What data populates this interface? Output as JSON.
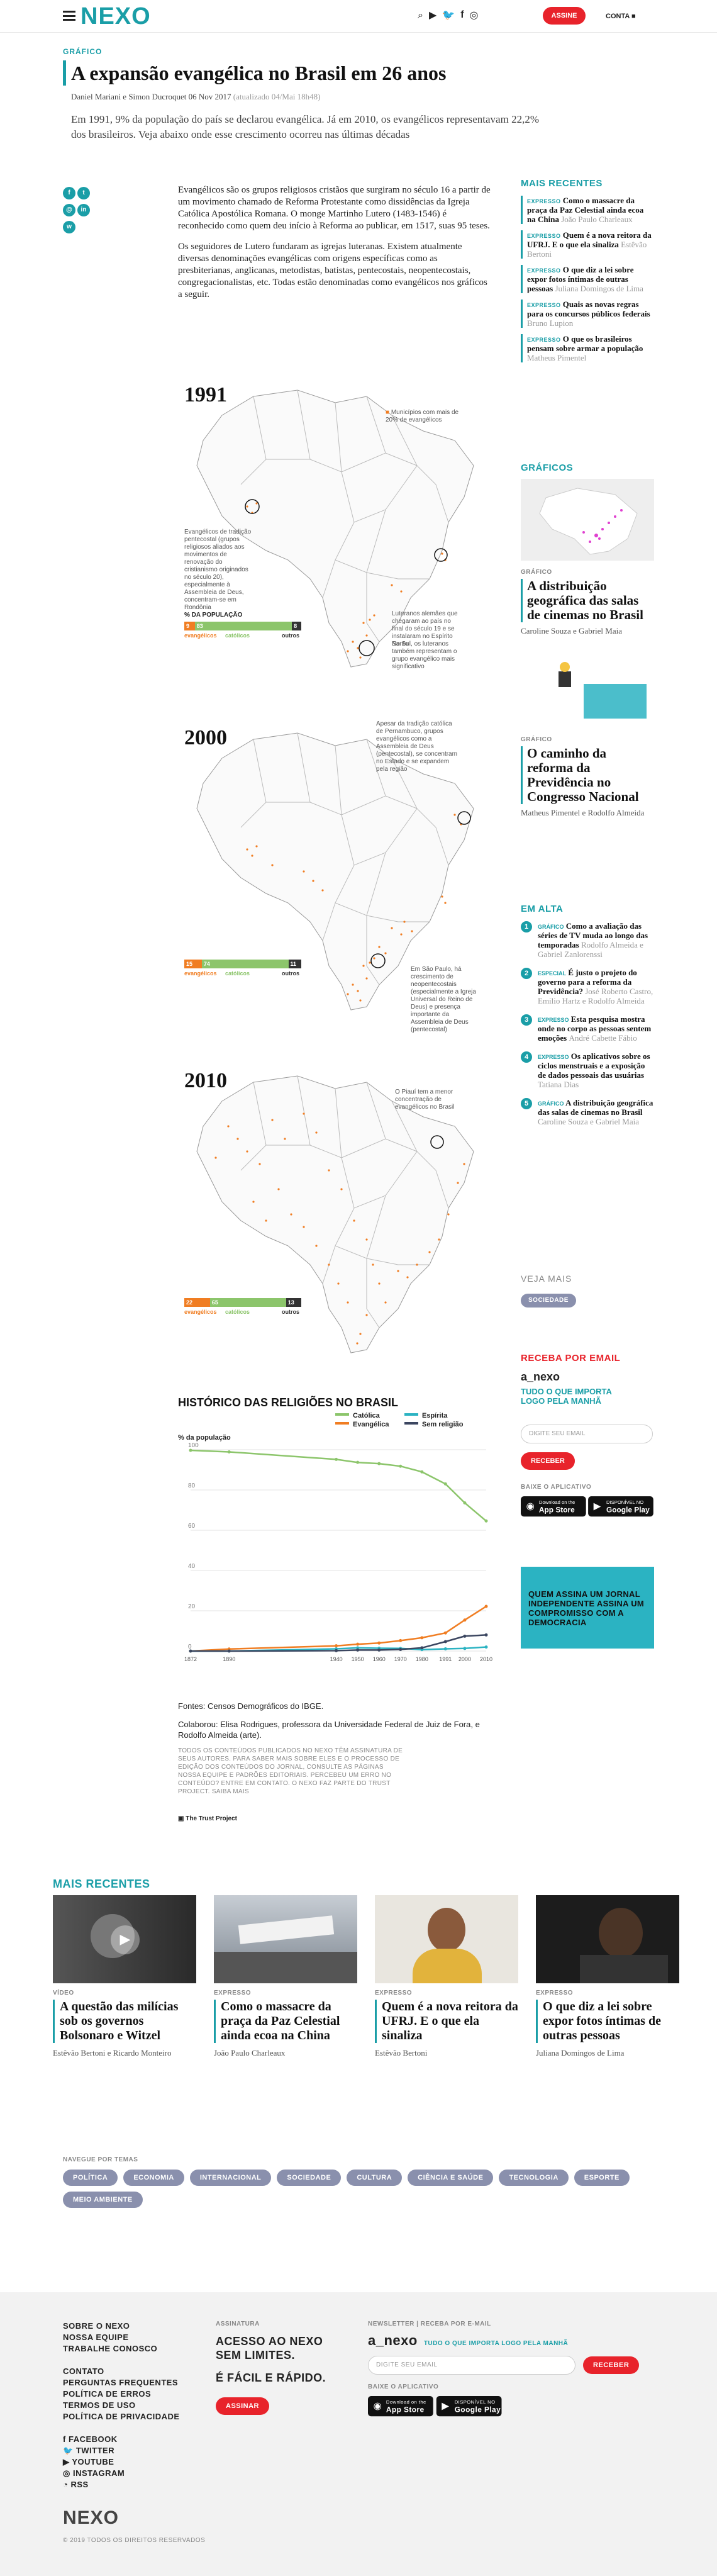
{
  "header": {
    "logo": "NEXO",
    "assine_label": "ASSINE",
    "conta_label": "CONTA",
    "icons": [
      "search-icon",
      "youtube-icon",
      "twitter-icon",
      "facebook-icon",
      "instagram-icon"
    ]
  },
  "article": {
    "kicker": "GRÁFICO",
    "title": "A expansão evangélica no Brasil em 26 anos",
    "byline": "Daniel Mariani e Simon Ducroquet",
    "date": "06 Nov 2017",
    "updated": "(atualizado 04/Mai 18h48)",
    "lede": "Em 1991, 9% da população do país se declarou evangélica. Já em 2010, os evangélicos representavam 22,2% dos brasileiros. Veja abaixo onde esse crescimento ocorreu nas últimas décadas",
    "paragraphs": [
      "Evangélicos são os grupos religiosos cristãos que surgiram no século 16 a partir de um movimento chamado de Reforma Protestante como dissidências da Igreja Católica Apostólica Romana. O monge Martinho Lutero (1483-1546) é reconhecido como quem deu início à Reforma ao publicar, em 1517, suas 95 teses.",
      "Os seguidores de Lutero fundaram as igrejas luteranas. Existem atualmente diversas denominações evangélicas com origens específicas como as presbiterianas, anglicanas, metodistas, batistas, pentecostais, neopentecostais, congregacionalistas, etc. Todas estão denominadas como evangélicos nos gráficos a seguir."
    ]
  },
  "maps": [
    {
      "year": "1991",
      "legend": "Municípios com mais de 20% de evangélicos",
      "pop_label": "% DA POPULAÇÃO",
      "pop": {
        "evangelicos": 9,
        "catolicos": 83,
        "outros": 8
      },
      "notes": [
        "Evangélicos de tradição pentecostal (grupos religiosos aliados aos movimentos de renovação do cristianismo originados no século 20), especialmente à Assembleia de Deus, concentram-se em Rondônia",
        "Luteranos alemães que chegaram ao país no final do século 19 e se instalaram no Espírito Santo",
        "No Sul, os luteranos também representam o grupo evangélico mais significativo"
      ]
    },
    {
      "year": "2000",
      "pop_label": "% DA POPULAÇÃO",
      "pop": {
        "evangelicos": 15,
        "catolicos": 74,
        "outros": 11
      },
      "notes": [
        "Apesar da tradição católica de Pernambuco, grupos evangélicos como a Assembleia de Deus (pentecostal), se concentram no Estado e se expandem pela região",
        "Em São Paulo, há crescimento de neopentecostais (especialmente a Igreja Universal do Reino de Deus) e presença importante da Assembleia de Deus (pentecostal)"
      ]
    },
    {
      "year": "2010",
      "pop_label": "% DA POPULAÇÃO",
      "pop": {
        "evangelicos": 22,
        "catolicos": 65,
        "outros": 13
      },
      "notes": [
        "O Piauí tem a menor concentração de evangélicos no Brasil"
      ]
    }
  ],
  "pop_legend": {
    "evangelicos": "evangélicos",
    "catolicos": "católicos",
    "outros": "outros"
  },
  "colors": {
    "accent": "#1a9ea7",
    "evangelica": "#f07d22",
    "catolica": "#8cc56b",
    "espirita": "#2bb3c2",
    "sem_religiao": "#3b4660",
    "red": "#e8232b"
  },
  "chart_data": {
    "type": "line",
    "title": "HISTÓRICO DAS RELIGIÕES NO BRASIL",
    "ylabel": "% da população",
    "ylim": [
      0,
      100
    ],
    "yticks": [
      0,
      20,
      40,
      60,
      80,
      100
    ],
    "x": [
      1872,
      1890,
      1940,
      1950,
      1960,
      1970,
      1980,
      1991,
      2000,
      2010
    ],
    "series": [
      {
        "name": "Católica",
        "values": [
          99.7,
          98.9,
          95.2,
          93.7,
          93.1,
          91.8,
          89.0,
          83.0,
          73.6,
          64.6
        ]
      },
      {
        "name": "Evangélica",
        "values": [
          0,
          1,
          2.6,
          3.4,
          4.0,
          5.2,
          6.6,
          9.0,
          15.4,
          22.2
        ]
      },
      {
        "name": "Espírita",
        "values": [
          0,
          0,
          1.1,
          1.6,
          1.4,
          1.3,
          0.7,
          1.1,
          1.3,
          2.0
        ]
      },
      {
        "name": "Sem religião",
        "values": [
          0,
          0,
          0.2,
          0.5,
          0.5,
          0.8,
          1.6,
          4.7,
          7.4,
          8.0
        ]
      }
    ]
  },
  "sources": {
    "fontes": "Fontes: Censos Demográficos do IBGE.",
    "colaborou": "Colaborou: Elisa Rodrigues, professora da Universidade Federal de Juiz de Fora, e Rodolfo Almeida (arte).",
    "disclaimer": "TODOS OS CONTEÚDOS PUBLICADOS NO NEXO TÊM ASSINATURA DE SEUS AUTORES. PARA SABER MAIS SOBRE ELES E O PROCESSO DE EDIÇÃO DOS CONTEÚDOS DO JORNAL, CONSULTE AS PÁGINAS NOSSA EQUIPE E PADRÕES EDITORIAIS. PERCEBEU UM ERRO NO CONTEÚDO? ENTRE EM CONTATO. O NEXO FAZ PARTE DO TRUST PROJECT. SAIBA MAIS",
    "trust": "The Trust Project"
  },
  "sidebar": {
    "recentes_title": "MAIS RECENTES",
    "recentes": [
      {
        "tag": "EXPRESSO",
        "title": "Como o massacre da praça da Paz Celestial ainda ecoa na China",
        "author": "João Paulo Charleaux"
      },
      {
        "tag": "EXPRESSO",
        "title": "Quem é a nova reitora da UFRJ. E o que ela sinaliza",
        "author": "Estêvão Bertoni"
      },
      {
        "tag": "EXPRESSO",
        "title": "O que diz a lei sobre expor fotos íntimas de outras pessoas",
        "author": "Juliana Domingos de Lima"
      },
      {
        "tag": "EXPRESSO",
        "title": "Quais as novas regras para os concursos públicos federais",
        "author": "Bruno Lupion"
      },
      {
        "tag": "EXPRESSO",
        "title": "O que os brasileiros pensam sobre armar a população",
        "author": "Matheus Pimentel"
      }
    ],
    "graficos_title": "GRÁFICOS",
    "graficos": [
      {
        "cat": "GRÁFICO",
        "title": "A distribuição geográfica das salas de cinemas no Brasil",
        "author": "Caroline Souza e Gabriel Maia"
      },
      {
        "cat": "GRÁFICO",
        "title": "O caminho da reforma da Previdência no Congresso Nacional",
        "author": "Matheus Pimentel e Rodolfo Almeida"
      }
    ],
    "emalta_title": "EM ALTA",
    "emalta": [
      {
        "n": "1",
        "tag": "GRÁFICO",
        "title": "Como a avaliação das séries de TV muda ao longo das temporadas",
        "author": "Rodolfo Almeida e Gabriel Zanlorenssi"
      },
      {
        "n": "2",
        "tag": "ESPECIAL",
        "title": "É justo o projeto do governo para a reforma da Previdência?",
        "author": "José Roberto Castro, Emilio Hartz e Rodolfo Almeida"
      },
      {
        "n": "3",
        "tag": "EXPRESSO",
        "title": "Esta pesquisa mostra onde no corpo as pessoas sentem emoções",
        "author": "André Cabette Fábio"
      },
      {
        "n": "4",
        "tag": "EXPRESSO",
        "title": "Os aplicativos sobre os ciclos menstruais e a exposição de dados pessoais das usuárias",
        "author": "Tatiana Dias"
      },
      {
        "n": "5",
        "tag": "GRÁFICO",
        "title": "A distribuição geográfica das salas de cinemas no Brasil",
        "author": "Caroline Souza e Gabriel Maia"
      }
    ],
    "veja_mais": "VEJA MAIS",
    "veja_tag": "SOCIEDADE",
    "email_title": "RECEBA POR EMAIL",
    "anexo": "a_nexo",
    "anexo_desc": "TUDO O QUE IMPORTA LOGO PELA MANHÃ",
    "email_placeholder": "DIGITE SEU EMAIL",
    "receber": "RECEBER",
    "baixe": "BAIXE O APLICATIVO",
    "appstore_small": "Download on the",
    "appstore": "App Store",
    "googleplay_small": "DISPONÍVEL NO",
    "googleplay": "Google Play",
    "promo": "QUEM ASSINA UM JORNAL INDEPENDENTE ASSINA UM COMPROMISSO COM A DEMOCRACIA"
  },
  "bottom": {
    "title": "MAIS RECENTES",
    "cards": [
      {
        "cat": "VÍDEO",
        "title": "A questão das milícias sob os governos Bolsonaro e Witzel",
        "author": "Estêvão Bertoni e Ricardo Monteiro"
      },
      {
        "cat": "EXPRESSO",
        "title": "Como o massacre da praça da Paz Celestial ainda ecoa na China",
        "author": "João Paulo Charleaux"
      },
      {
        "cat": "EXPRESSO",
        "title": "Quem é a nova reitora da UFRJ. E o que ela sinaliza",
        "author": "Estêvão Bertoni"
      },
      {
        "cat": "EXPRESSO",
        "title": "O que diz a lei sobre expor fotos íntimas de outras pessoas",
        "author": "Juliana Domingos de Lima"
      }
    ],
    "temas_label": "NAVEGUE POR TEMAS",
    "temas": [
      "POLÍTICA",
      "ECONOMIA",
      "INTERNACIONAL",
      "SOCIEDADE",
      "CULTURA",
      "CIÊNCIA E SAÚDE",
      "TECNOLOGIA",
      "ESPORTE",
      "MEIO AMBIENTE"
    ]
  },
  "footer": {
    "col1": [
      "SOBRE O NEXO",
      "NOSSA EQUIPE",
      "TRABALHE CONOSCO"
    ],
    "col2": [
      "CONTATO",
      "PERGUNTAS FREQUENTES",
      "POLÍTICA DE ERROS",
      "TERMOS DE USO",
      "POLÍTICA DE PRIVACIDADE"
    ],
    "social": [
      "FACEBOOK",
      "TWITTER",
      "YOUTUBE",
      "INSTAGRAM",
      "RSS"
    ],
    "assinatura_label": "ASSINATURA",
    "assinatura_text1": "ACESSO AO NEXO SEM LIMITES.",
    "assinatura_text2": "É FÁCIL E RÁPIDO.",
    "assinar": "ASSINAR",
    "newsletter_label": "NEWSLETTER | RECEBA POR E-MAIL",
    "anexo": "a_nexo",
    "anexo_desc": "TUDO O QUE IMPORTA LOGO PELA MANHÃ",
    "email_placeholder": "DIGITE SEU EMAIL",
    "receber": "RECEBER",
    "baixe": "BAIXE O APLICATIVO",
    "logo": "NEXO",
    "copyright": "© 2019 TODOS OS DIREITOS RESERVADOS"
  }
}
